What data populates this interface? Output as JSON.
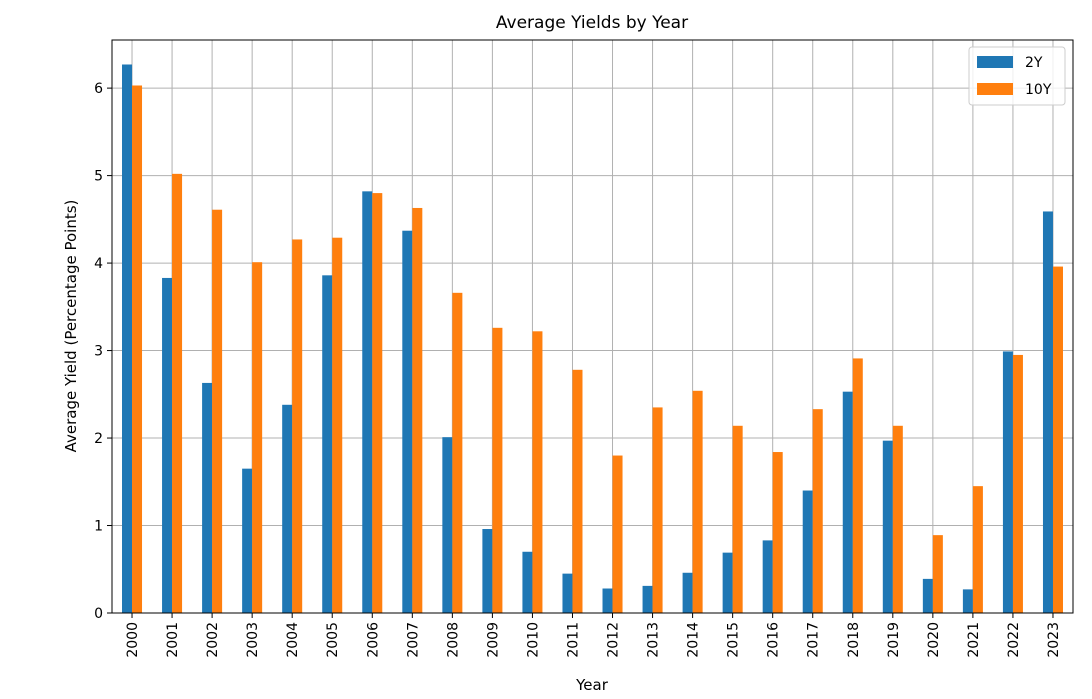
{
  "chart_data": {
    "type": "bar",
    "title": "Average Yields by Year",
    "xlabel": "Year",
    "ylabel": "Average Yield (Percentage Points)",
    "ylim": [
      0,
      6.55
    ],
    "yticks": [
      0,
      1,
      2,
      3,
      4,
      5,
      6
    ],
    "grid": true,
    "legend_position": "top-right",
    "categories": [
      "2000",
      "2001",
      "2002",
      "2003",
      "2004",
      "2005",
      "2006",
      "2007",
      "2008",
      "2009",
      "2010",
      "2011",
      "2012",
      "2013",
      "2014",
      "2015",
      "2016",
      "2017",
      "2018",
      "2019",
      "2020",
      "2021",
      "2022",
      "2023"
    ],
    "series": [
      {
        "name": "2Y",
        "color": "#1f77b4",
        "values": [
          6.27,
          3.83,
          2.63,
          1.65,
          2.38,
          3.86,
          4.82,
          4.37,
          2.01,
          0.96,
          0.7,
          0.45,
          0.28,
          0.31,
          0.46,
          0.69,
          0.83,
          1.4,
          2.53,
          1.97,
          0.39,
          0.27,
          2.99,
          4.59
        ]
      },
      {
        "name": "10Y",
        "color": "#ff7f0e",
        "values": [
          6.03,
          5.02,
          4.61,
          4.01,
          4.27,
          4.29,
          4.8,
          4.63,
          3.66,
          3.26,
          3.22,
          2.78,
          1.8,
          2.35,
          2.54,
          2.14,
          1.84,
          2.33,
          2.91,
          2.14,
          0.89,
          1.45,
          2.95,
          3.96
        ]
      }
    ]
  }
}
